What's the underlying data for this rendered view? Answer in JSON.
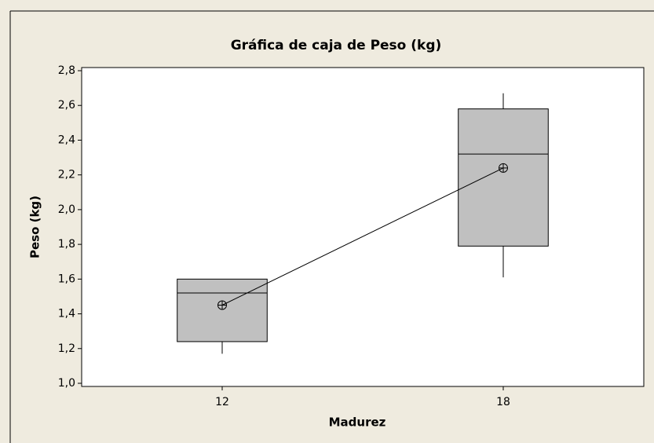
{
  "chart_data": {
    "type": "box",
    "title": "Gráfica de caja de Peso (kg)",
    "x_label": "Madurez",
    "y_label": "Peso (kg)",
    "categories": [
      "12",
      "18"
    ],
    "boxes": [
      {
        "min": 1.17,
        "q1": 1.24,
        "median": 1.52,
        "q3": 1.6,
        "max": 1.6,
        "mean": 1.45
      },
      {
        "min": 1.61,
        "q1": 1.79,
        "median": 2.32,
        "q3": 2.58,
        "max": 2.67,
        "mean": 2.24
      }
    ],
    "color": "#c0c0c0",
    "ylim": [
      1.0,
      2.8
    ],
    "yticks": [
      {
        "value": 1.0,
        "label": "1,0"
      },
      {
        "value": 1.2,
        "label": "1,2"
      },
      {
        "value": 1.4,
        "label": "1,4"
      },
      {
        "value": 1.6,
        "label": "1,6"
      },
      {
        "value": 1.8,
        "label": "1,8"
      },
      {
        "value": 2.0,
        "label": "2,0"
      },
      {
        "value": 2.2,
        "label": "2,2"
      },
      {
        "value": 2.4,
        "label": "2,4"
      },
      {
        "value": 2.6,
        "label": "2,6"
      },
      {
        "value": 2.8,
        "label": "2,8"
      }
    ],
    "connect_means": true
  }
}
